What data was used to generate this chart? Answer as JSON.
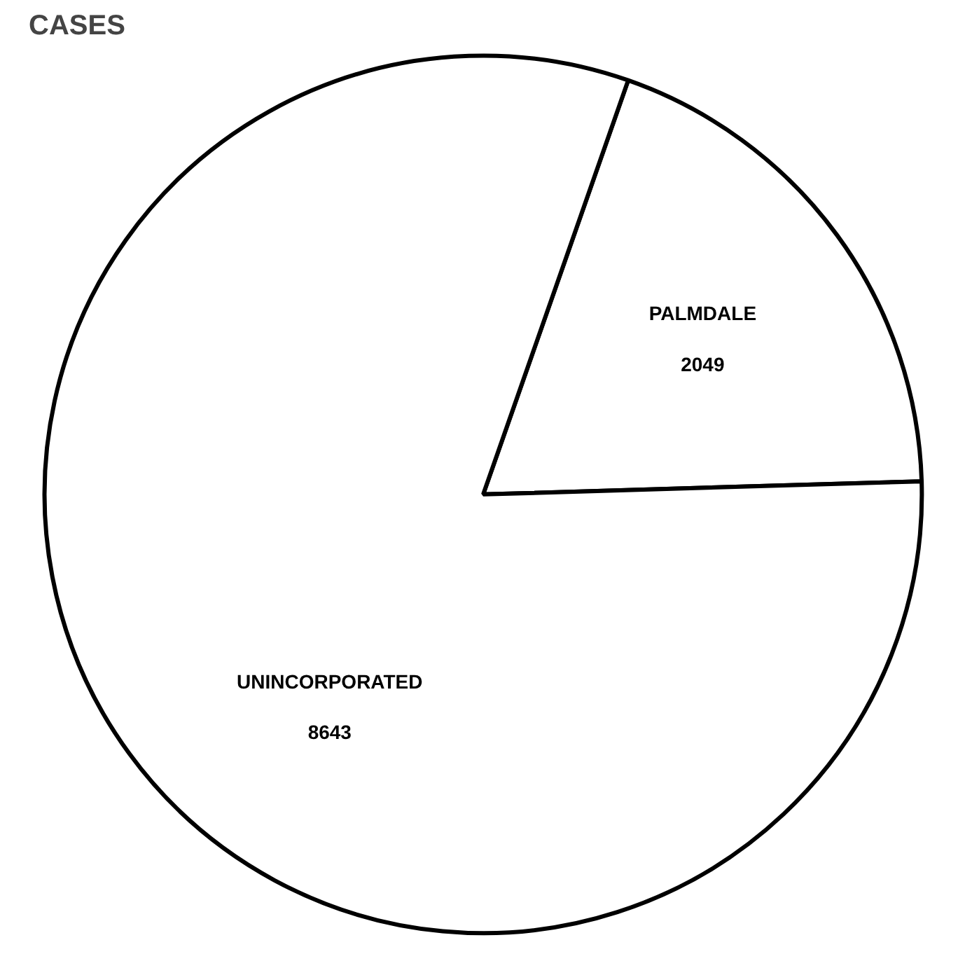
{
  "chart_data": {
    "type": "pie",
    "title": "CASES",
    "categories": [
      "PALMDALE",
      "UNINCORPORATED"
    ],
    "values": [
      2049,
      8643
    ],
    "colors": [
      "#ffffff",
      "#ffffff"
    ],
    "data_labels": true
  }
}
